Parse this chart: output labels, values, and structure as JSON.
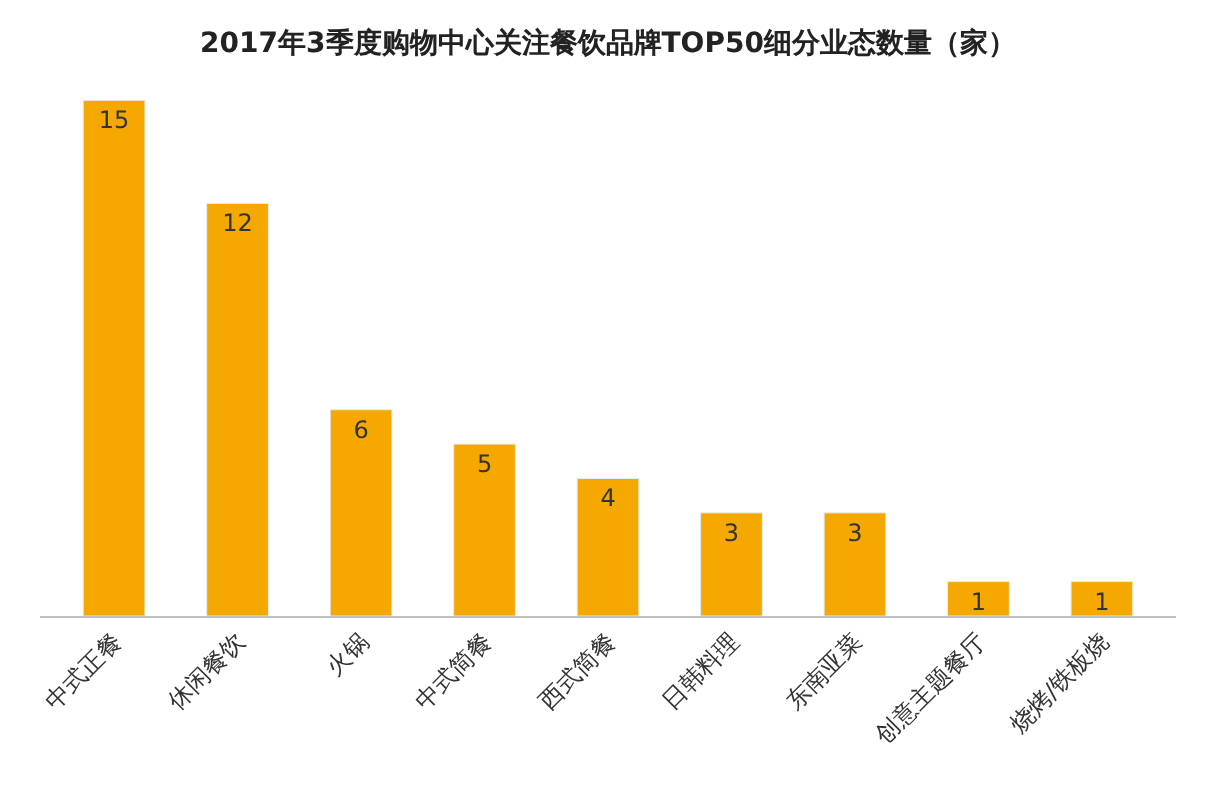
{
  "chart_data": {
    "type": "bar",
    "title": "2017年3季度购物中心关注餐饮品牌TOP50细分业态数量（家）",
    "categories": [
      "中式正餐",
      "休闲餐饮",
      "火锅",
      "中式简餐",
      "西式简餐",
      "日韩料理",
      "东南亚菜",
      "创意主题餐厅",
      "烧烤/铁板烧"
    ],
    "values": [
      15,
      12,
      6,
      5,
      4,
      3,
      3,
      1,
      1
    ],
    "color": "#f5a800",
    "data_labels": true
  }
}
